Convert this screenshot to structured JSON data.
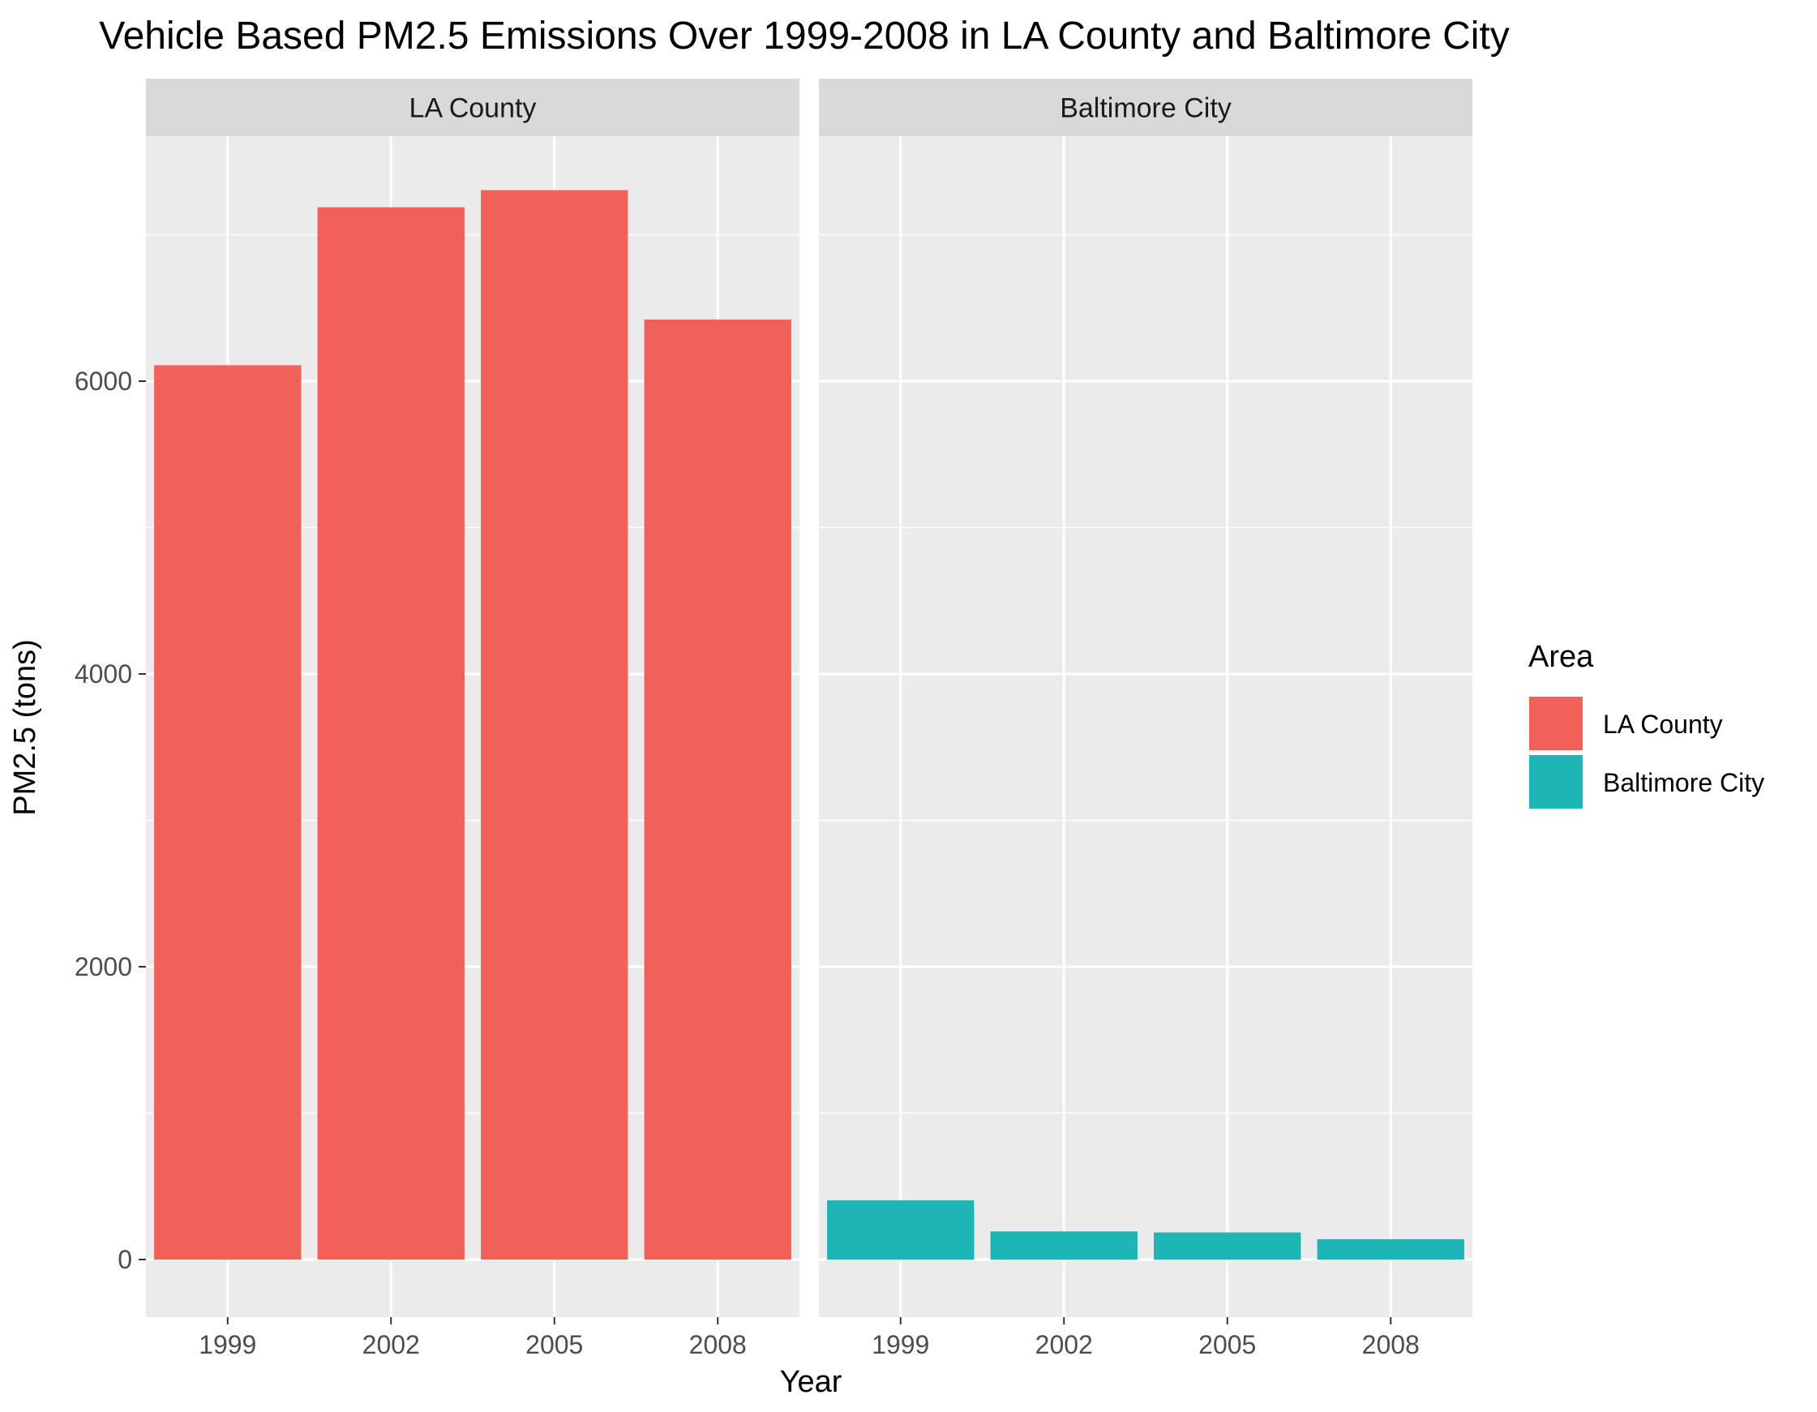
{
  "chart_data": {
    "type": "bar",
    "title": "Vehicle Based PM2.5 Emissions Over 1999-2008 in LA County and Baltimore City",
    "xlabel": "Year",
    "ylabel": "PM2.5 (tons)",
    "categories": [
      "1999",
      "2002",
      "2005",
      "2008"
    ],
    "yticks": [
      "0",
      "2000",
      "4000",
      "6000"
    ],
    "ylim": [
      -370,
      7700
    ],
    "grid": true,
    "facets": [
      {
        "label": "LA County",
        "series": "LA County",
        "values": [
          6109,
          7188,
          7305,
          6421
        ]
      },
      {
        "label": "Baltimore City",
        "series": "Baltimore City",
        "values": [
          404,
          192,
          185,
          139
        ]
      }
    ],
    "legend": {
      "title": "Area",
      "position": "right",
      "items": [
        {
          "name": "LA County",
          "color": "#F2605A"
        },
        {
          "name": "Baltimore City",
          "color": "#1DB5B5"
        }
      ]
    }
  }
}
